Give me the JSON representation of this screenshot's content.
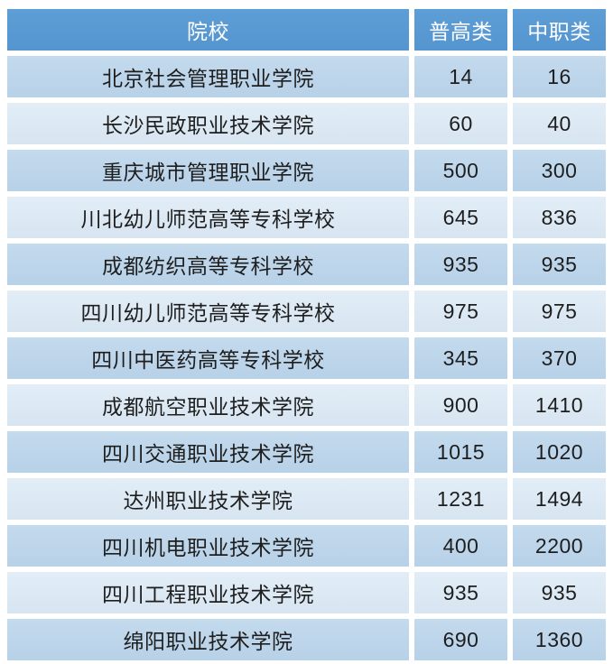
{
  "table": {
    "headers": {
      "school": "院校",
      "pugao": "普高类",
      "zhongzhi": "中职类"
    },
    "rows": [
      {
        "school": "北京社会管理职业学院",
        "pugao": "14",
        "zhongzhi": "16"
      },
      {
        "school": "长沙民政职业技术学院",
        "pugao": "60",
        "zhongzhi": "40"
      },
      {
        "school": "重庆城市管理职业学院",
        "pugao": "500",
        "zhongzhi": "300"
      },
      {
        "school": "川北幼儿师范高等专科学校",
        "pugao": "645",
        "zhongzhi": "836"
      },
      {
        "school": "成都纺织高等专科学校",
        "pugao": "935",
        "zhongzhi": "935"
      },
      {
        "school": "四川幼儿师范高等专科学校",
        "pugao": "975",
        "zhongzhi": "975"
      },
      {
        "school": "四川中医药高等专科学校",
        "pugao": "345",
        "zhongzhi": "370"
      },
      {
        "school": "成都航空职业技术学院",
        "pugao": "900",
        "zhongzhi": "1410"
      },
      {
        "school": "四川交通职业技术学院",
        "pugao": "1015",
        "zhongzhi": "1020"
      },
      {
        "school": "达州职业技术学院",
        "pugao": "1231",
        "zhongzhi": "1494"
      },
      {
        "school": "四川机电职业技术学院",
        "pugao": "400",
        "zhongzhi": "2200"
      },
      {
        "school": "四川工程职业技术学院",
        "pugao": "935",
        "zhongzhi": "935"
      },
      {
        "school": "绵阳职业技术学院",
        "pugao": "690",
        "zhongzhi": "1360"
      }
    ]
  },
  "colors": {
    "header_bg": "#5B9BD5",
    "header_text": "#FFFFFF",
    "row_dark": "#BCD5EA",
    "row_light": "#DCE9F4",
    "cell_text": "#1E1E1E",
    "gutter": "#FFFFFF"
  },
  "chart_data": {
    "type": "table",
    "title": "",
    "columns": [
      "院校",
      "普高类",
      "中职类"
    ],
    "rows": [
      [
        "北京社会管理职业学院",
        14,
        16
      ],
      [
        "长沙民政职业技术学院",
        60,
        40
      ],
      [
        "重庆城市管理职业学院",
        500,
        300
      ],
      [
        "川北幼儿师范高等专科学校",
        645,
        836
      ],
      [
        "成都纺织高等专科学校",
        935,
        935
      ],
      [
        "四川幼儿师范高等专科学校",
        975,
        975
      ],
      [
        "四川中医药高等专科学校",
        345,
        370
      ],
      [
        "成都航空职业技术学院",
        900,
        1410
      ],
      [
        "四川交通职业技术学院",
        1015,
        1020
      ],
      [
        "达州职业技术学院",
        1231,
        1494
      ],
      [
        "四川机电职业技术学院",
        400,
        2200
      ],
      [
        "四川工程职业技术学院",
        935,
        935
      ],
      [
        "绵阳职业技术学院",
        690,
        1360
      ]
    ],
    "layout": {
      "header_row": true,
      "zebra_striping": true,
      "all_cells_centered": true
    }
  }
}
